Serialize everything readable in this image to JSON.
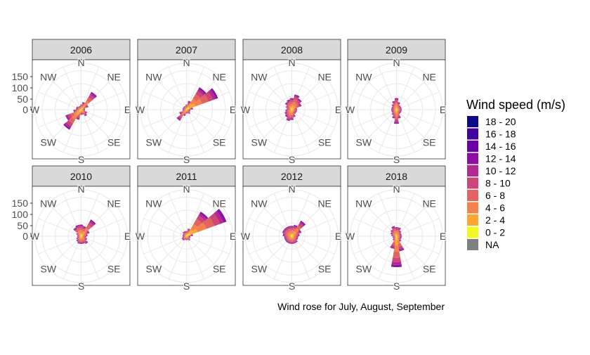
{
  "chart_data": {
    "type": "wind-rose-facets",
    "caption": "Wind rose for July, August, September",
    "radial_ticks": [
      "150",
      "100",
      "50",
      "0"
    ],
    "radial_max": 180,
    "directions": [
      {
        "label": "N",
        "angle": 0
      },
      {
        "label": "NE",
        "angle": 45
      },
      {
        "label": "E",
        "angle": 90
      },
      {
        "label": "SE",
        "angle": 135
      },
      {
        "label": "S",
        "angle": 180
      },
      {
        "label": "SW",
        "angle": 225
      },
      {
        "label": "W",
        "angle": 270
      },
      {
        "label": "NW",
        "angle": 315
      }
    ],
    "bin_width_deg": 20,
    "legend": {
      "title": "Wind speed (m/s)",
      "items": [
        {
          "label": "18 - 20",
          "color": "#0d0887"
        },
        {
          "label": "16 - 18",
          "color": "#41049d"
        },
        {
          "label": "14 - 16",
          "color": "#6a00a8"
        },
        {
          "label": "12 - 14",
          "color": "#8f0da4"
        },
        {
          "label": "10 - 12",
          "color": "#b12a90"
        },
        {
          "label": "8 - 10",
          "color": "#cc4778"
        },
        {
          "label": "6 - 8",
          "color": "#e16462"
        },
        {
          "label": "4 - 6",
          "color": "#f2844b"
        },
        {
          "label": "2 - 4",
          "color": "#fca636"
        },
        {
          "label": "0 - 2",
          "color": "#f0f921"
        },
        {
          "label": "NA",
          "color": "#808080"
        }
      ]
    },
    "panels": [
      {
        "label": "2006",
        "bins": [
          {
            "dir": 0,
            "total": 20
          },
          {
            "dir": 20,
            "total": 30
          },
          {
            "dir": 40,
            "total": 80
          },
          {
            "dir": 60,
            "total": 30
          },
          {
            "dir": 80,
            "total": 15
          },
          {
            "dir": 100,
            "total": 15
          },
          {
            "dir": 120,
            "total": 25
          },
          {
            "dir": 140,
            "total": 30
          },
          {
            "dir": 160,
            "total": 20
          },
          {
            "dir": 180,
            "total": 20
          },
          {
            "dir": 200,
            "total": 40
          },
          {
            "dir": 220,
            "total": 90
          },
          {
            "dir": 240,
            "total": 65
          },
          {
            "dir": 260,
            "total": 30
          },
          {
            "dir": 280,
            "total": 20
          },
          {
            "dir": 300,
            "total": 20
          },
          {
            "dir": 320,
            "total": 15
          },
          {
            "dir": 340,
            "total": 15
          }
        ]
      },
      {
        "label": "2007",
        "bins": [
          {
            "dir": 0,
            "total": 20
          },
          {
            "dir": 20,
            "total": 35
          },
          {
            "dir": 40,
            "total": 100
          },
          {
            "dir": 60,
            "total": 130
          },
          {
            "dir": 80,
            "total": 25
          },
          {
            "dir": 100,
            "total": 15
          },
          {
            "dir": 120,
            "total": 15
          },
          {
            "dir": 140,
            "total": 20
          },
          {
            "dir": 160,
            "total": 15
          },
          {
            "dir": 180,
            "total": 15
          },
          {
            "dir": 200,
            "total": 25
          },
          {
            "dir": 220,
            "total": 50
          },
          {
            "dir": 240,
            "total": 30
          },
          {
            "dir": 260,
            "total": 15
          },
          {
            "dir": 280,
            "total": 15
          },
          {
            "dir": 300,
            "total": 15
          },
          {
            "dir": 320,
            "total": 15
          },
          {
            "dir": 340,
            "total": 15
          }
        ]
      },
      {
        "label": "2008",
        "bins": [
          {
            "dir": 0,
            "total": 45
          },
          {
            "dir": 20,
            "total": 60
          },
          {
            "dir": 40,
            "total": 50
          },
          {
            "dir": 60,
            "total": 40
          },
          {
            "dir": 80,
            "total": 20
          },
          {
            "dir": 100,
            "total": 20
          },
          {
            "dir": 120,
            "total": 20
          },
          {
            "dir": 140,
            "total": 20
          },
          {
            "dir": 160,
            "total": 30
          },
          {
            "dir": 180,
            "total": 40
          },
          {
            "dir": 200,
            "total": 45
          },
          {
            "dir": 220,
            "total": 35
          },
          {
            "dir": 240,
            "total": 30
          },
          {
            "dir": 260,
            "total": 25
          },
          {
            "dir": 280,
            "total": 20
          },
          {
            "dir": 300,
            "total": 25
          },
          {
            "dir": 320,
            "total": 35
          },
          {
            "dir": 340,
            "total": 40
          }
        ]
      },
      {
        "label": "2009",
        "bins": [
          {
            "dir": 0,
            "total": 45
          },
          {
            "dir": 20,
            "total": 30
          },
          {
            "dir": 40,
            "total": 20
          },
          {
            "dir": 60,
            "total": 20
          },
          {
            "dir": 80,
            "total": 20
          },
          {
            "dir": 100,
            "total": 20
          },
          {
            "dir": 120,
            "total": 20
          },
          {
            "dir": 140,
            "total": 20
          },
          {
            "dir": 160,
            "total": 35
          },
          {
            "dir": 180,
            "total": 55
          },
          {
            "dir": 200,
            "total": 35
          },
          {
            "dir": 220,
            "total": 25
          },
          {
            "dir": 240,
            "total": 20
          },
          {
            "dir": 260,
            "total": 20
          },
          {
            "dir": 280,
            "total": 20
          },
          {
            "dir": 300,
            "total": 20
          },
          {
            "dir": 320,
            "total": 25
          },
          {
            "dir": 340,
            "total": 35
          }
        ]
      },
      {
        "label": "2010",
        "bins": [
          {
            "dir": 0,
            "total": 45
          },
          {
            "dir": 20,
            "total": 40
          },
          {
            "dir": 40,
            "total": 75
          },
          {
            "dir": 60,
            "total": 35
          },
          {
            "dir": 80,
            "total": 25
          },
          {
            "dir": 100,
            "total": 20
          },
          {
            "dir": 120,
            "total": 25
          },
          {
            "dir": 140,
            "total": 35
          },
          {
            "dir": 160,
            "total": 30
          },
          {
            "dir": 180,
            "total": 30
          },
          {
            "dir": 200,
            "total": 30
          },
          {
            "dir": 220,
            "total": 25
          },
          {
            "dir": 240,
            "total": 20
          },
          {
            "dir": 260,
            "total": 15
          },
          {
            "dir": 280,
            "total": 15
          },
          {
            "dir": 300,
            "total": 20
          },
          {
            "dir": 320,
            "total": 40
          },
          {
            "dir": 340,
            "total": 45
          }
        ]
      },
      {
        "label": "2011",
        "bins": [
          {
            "dir": 0,
            "total": 20
          },
          {
            "dir": 20,
            "total": 30
          },
          {
            "dir": 40,
            "total": 110
          },
          {
            "dir": 60,
            "total": 165
          },
          {
            "dir": 80,
            "total": 25
          },
          {
            "dir": 100,
            "total": 15
          },
          {
            "dir": 120,
            "total": 15
          },
          {
            "dir": 140,
            "total": 20
          },
          {
            "dir": 160,
            "total": 15
          },
          {
            "dir": 180,
            "total": 15
          },
          {
            "dir": 200,
            "total": 15
          },
          {
            "dir": 220,
            "total": 20
          },
          {
            "dir": 240,
            "total": 20
          },
          {
            "dir": 260,
            "total": 15
          },
          {
            "dir": 280,
            "total": 15
          },
          {
            "dir": 300,
            "total": 15
          },
          {
            "dir": 320,
            "total": 20
          },
          {
            "dir": 340,
            "total": 20
          }
        ]
      },
      {
        "label": "2012",
        "bins": [
          {
            "dir": 0,
            "total": 40
          },
          {
            "dir": 20,
            "total": 45
          },
          {
            "dir": 40,
            "total": 70
          },
          {
            "dir": 60,
            "total": 40
          },
          {
            "dir": 80,
            "total": 30
          },
          {
            "dir": 100,
            "total": 25
          },
          {
            "dir": 120,
            "total": 25
          },
          {
            "dir": 140,
            "total": 30
          },
          {
            "dir": 160,
            "total": 30
          },
          {
            "dir": 180,
            "total": 30
          },
          {
            "dir": 200,
            "total": 30
          },
          {
            "dir": 220,
            "total": 30
          },
          {
            "dir": 240,
            "total": 30
          },
          {
            "dir": 260,
            "total": 30
          },
          {
            "dir": 280,
            "total": 35
          },
          {
            "dir": 300,
            "total": 40
          },
          {
            "dir": 320,
            "total": 40
          },
          {
            "dir": 340,
            "total": 40
          }
        ]
      },
      {
        "label": "2018",
        "bins": [
          {
            "dir": 0,
            "total": 35
          },
          {
            "dir": 20,
            "total": 35
          },
          {
            "dir": 40,
            "total": 25
          },
          {
            "dir": 60,
            "total": 20
          },
          {
            "dir": 80,
            "total": 20
          },
          {
            "dir": 100,
            "total": 20
          },
          {
            "dir": 120,
            "total": 20
          },
          {
            "dir": 140,
            "total": 25
          },
          {
            "dir": 160,
            "total": 60
          },
          {
            "dir": 180,
            "total": 120
          },
          {
            "dir": 200,
            "total": 50
          },
          {
            "dir": 220,
            "total": 20
          },
          {
            "dir": 240,
            "total": 15
          },
          {
            "dir": 260,
            "total": 15
          },
          {
            "dir": 280,
            "total": 20
          },
          {
            "dir": 300,
            "total": 25
          },
          {
            "dir": 320,
            "total": 30
          },
          {
            "dir": 340,
            "total": 40
          }
        ]
      }
    ]
  }
}
